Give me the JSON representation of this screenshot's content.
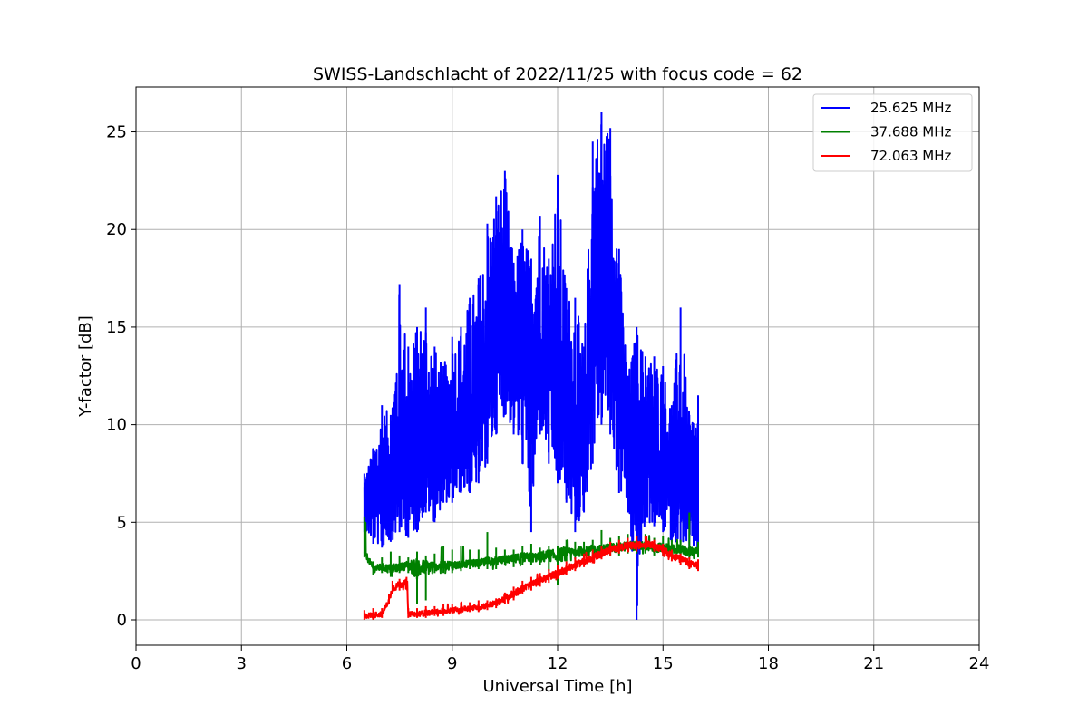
{
  "chart_data": {
    "type": "line",
    "title": "SWISS-Landschlacht of 2022/11/25 with focus code = 62",
    "xlabel": "Universal Time [h]",
    "ylabel": "Y-factor [dB]",
    "xlim": [
      0,
      24
    ],
    "ylim": [
      -1.3,
      27.3
    ],
    "xticks": [
      0,
      3,
      6,
      9,
      12,
      15,
      18,
      21,
      24
    ],
    "yticks": [
      0,
      5,
      10,
      15,
      20,
      25
    ],
    "grid": true,
    "legend_position": "top-right",
    "series": [
      {
        "name": "25.625 MHz",
        "color": "#0000ff",
        "x": [
          6.5,
          6.75,
          7.0,
          7.25,
          7.5,
          7.75,
          8.0,
          8.25,
          8.5,
          8.75,
          9.0,
          9.25,
          9.5,
          9.75,
          10.0,
          10.25,
          10.5,
          10.75,
          11.0,
          11.25,
          11.5,
          11.75,
          12.0,
          12.25,
          12.5,
          12.75,
          13.0,
          13.25,
          13.5,
          13.75,
          14.0,
          14.25,
          14.5,
          14.75,
          15.0,
          15.25,
          15.5,
          15.75,
          16.0
        ],
        "y": [
          5.5,
          6.5,
          6.0,
          6.8,
          7.5,
          7.0,
          8.0,
          8.5,
          7.5,
          8.0,
          8.5,
          9.0,
          9.5,
          10.0,
          12.0,
          14.0,
          15.0,
          14.0,
          13.5,
          13.0,
          14.0,
          13.0,
          12.0,
          10.0,
          9.0,
          8.0,
          16.0,
          18.0,
          17.0,
          13.0,
          10.0,
          9.0,
          8.5,
          8.0,
          7.5,
          7.5,
          7.0,
          6.0,
          5.0
        ],
        "upper": [
          7.5,
          8.8,
          11.0,
          10.5,
          17.2,
          14.0,
          15.0,
          16.0,
          14.0,
          13.0,
          14.5,
          15.0,
          16.5,
          17.5,
          20.3,
          21.7,
          23.0,
          18.3,
          20.0,
          18.5,
          20.7,
          18.5,
          22.8,
          17.0,
          16.5,
          14.0,
          24.5,
          26.0,
          25.2,
          19.0,
          12.5,
          15.0,
          13.5,
          13.5,
          13.0,
          11.0,
          16.0,
          10.5,
          11.5
        ],
        "lower": [
          4.5,
          3.9,
          3.7,
          4.0,
          4.5,
          4.2,
          4.5,
          5.5,
          5.0,
          6.0,
          6.0,
          6.5,
          6.5,
          7.0,
          8.0,
          9.5,
          10.5,
          9.5,
          8.0,
          4.5,
          9.5,
          8.0,
          7.0,
          6.0,
          4.5,
          5.5,
          8.0,
          10.0,
          9.5,
          6.5,
          5.5,
          0.0,
          5.0,
          4.8,
          4.5,
          4.0,
          4.0,
          3.7,
          3.5
        ]
      },
      {
        "name": "37.688 MHz",
        "color": "#008000",
        "x": [
          6.5,
          6.75,
          7.0,
          7.25,
          7.5,
          7.75,
          8.0,
          8.25,
          8.5,
          8.75,
          9.0,
          9.25,
          9.5,
          9.75,
          10.0,
          10.25,
          10.5,
          10.75,
          11.0,
          11.25,
          11.5,
          11.75,
          12.0,
          12.25,
          12.5,
          12.75,
          13.0,
          13.25,
          13.5,
          13.75,
          14.0,
          14.25,
          14.5,
          14.75,
          15.0,
          15.25,
          15.5,
          15.75,
          16.0
        ],
        "y": [
          3.5,
          2.6,
          2.7,
          2.6,
          2.7,
          2.8,
          2.6,
          2.7,
          2.7,
          2.8,
          2.8,
          2.8,
          2.9,
          2.9,
          3.0,
          3.0,
          3.1,
          3.1,
          3.2,
          3.2,
          3.2,
          3.3,
          3.3,
          3.4,
          3.5,
          3.5,
          3.6,
          3.6,
          3.7,
          3.7,
          3.8,
          3.8,
          3.8,
          3.7,
          3.7,
          3.6,
          3.6,
          3.5,
          3.5
        ],
        "upper": [
          5.3,
          3.0,
          3.2,
          3.5,
          3.3,
          3.2,
          3.5,
          3.3,
          3.4,
          3.8,
          3.6,
          3.8,
          3.6,
          3.6,
          4.5,
          3.7,
          3.6,
          3.6,
          3.8,
          3.9,
          3.7,
          3.8,
          3.8,
          4.1,
          4.0,
          4.0,
          4.1,
          4.6,
          4.2,
          4.3,
          4.4,
          4.3,
          4.4,
          4.2,
          4.3,
          4.1,
          4.1,
          5.5,
          4.0
        ],
        "lower": [
          3.2,
          2.3,
          2.4,
          2.2,
          2.4,
          2.4,
          0.8,
          1.0,
          2.4,
          2.4,
          2.4,
          2.5,
          2.6,
          2.6,
          2.6,
          2.6,
          2.8,
          2.7,
          2.8,
          2.8,
          2.8,
          2.5,
          1.8,
          3.0,
          3.1,
          3.1,
          3.2,
          3.2,
          3.3,
          3.3,
          3.4,
          3.4,
          3.4,
          3.3,
          3.3,
          3.2,
          3.2,
          3.1,
          3.2
        ]
      },
      {
        "name": "72.063 MHz",
        "color": "#ff0000",
        "x": [
          6.5,
          6.75,
          7.0,
          7.2,
          7.3,
          7.5,
          7.7,
          7.72,
          7.75,
          8.0,
          8.25,
          8.5,
          8.75,
          9.0,
          9.25,
          9.5,
          9.75,
          10.0,
          10.25,
          10.5,
          10.75,
          11.0,
          11.25,
          11.5,
          11.75,
          12.0,
          12.25,
          12.5,
          12.75,
          13.0,
          13.25,
          13.5,
          13.75,
          14.0,
          14.25,
          14.5,
          14.75,
          15.0,
          15.25,
          15.5,
          15.75,
          16.0
        ],
        "y": [
          0.2,
          0.25,
          0.3,
          1.0,
          1.6,
          1.8,
          1.9,
          1.8,
          0.3,
          0.3,
          0.35,
          0.4,
          0.45,
          0.5,
          0.55,
          0.6,
          0.65,
          0.75,
          0.85,
          1.1,
          1.35,
          1.6,
          1.8,
          2.0,
          2.2,
          2.4,
          2.6,
          2.8,
          3.0,
          3.2,
          3.4,
          3.6,
          3.7,
          3.8,
          3.8,
          3.9,
          3.8,
          3.6,
          3.3,
          3.1,
          2.9,
          2.8
        ],
        "upper": [
          0.5,
          0.6,
          0.6,
          1.3,
          2.0,
          2.1,
          2.2,
          2.0,
          0.6,
          0.6,
          0.7,
          0.7,
          0.8,
          0.8,
          0.9,
          0.9,
          1.0,
          1.0,
          1.1,
          1.4,
          1.7,
          2.0,
          2.2,
          2.4,
          2.6,
          2.8,
          3.0,
          3.2,
          3.4,
          3.6,
          3.8,
          4.0,
          4.1,
          4.2,
          4.3,
          4.3,
          4.1,
          3.9,
          3.6,
          3.4,
          3.2,
          3.1
        ],
        "lower": [
          0.0,
          0.0,
          0.1,
          0.8,
          1.3,
          1.5,
          1.6,
          1.5,
          0.1,
          0.1,
          0.1,
          0.2,
          0.2,
          0.3,
          0.3,
          0.4,
          0.4,
          0.5,
          0.6,
          0.8,
          1.0,
          1.3,
          1.5,
          1.7,
          1.9,
          2.1,
          2.3,
          2.5,
          2.7,
          2.9,
          3.1,
          3.3,
          3.4,
          3.5,
          3.5,
          3.6,
          3.5,
          3.3,
          3.0,
          2.8,
          2.6,
          2.5
        ]
      }
    ]
  }
}
